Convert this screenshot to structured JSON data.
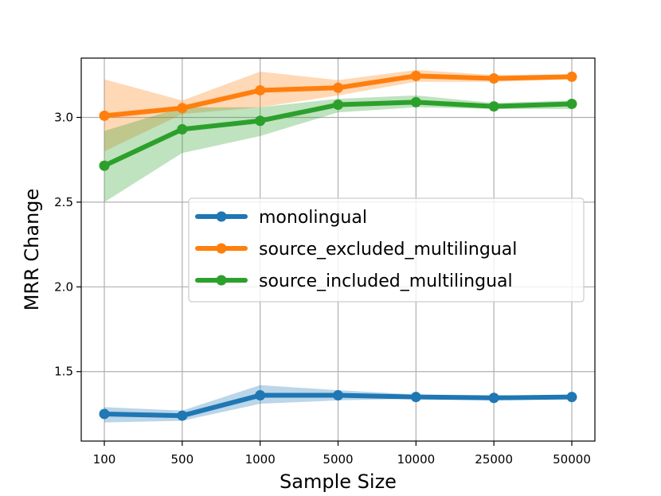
{
  "chart_data": {
    "type": "line",
    "xlabel": "Sample Size",
    "ylabel": "MRR Change",
    "categories": [
      "100",
      "500",
      "1000",
      "5000",
      "10000",
      "25000",
      "50000"
    ],
    "ylim": [
      1.09,
      3.35
    ],
    "yticks": [
      1.5,
      2.0,
      2.5,
      3.0
    ],
    "ytick_labels": [
      "1.5",
      "2.0",
      "2.5",
      "3.0"
    ],
    "grid": true,
    "legend_position": "center-right",
    "series": [
      {
        "name": "monolingual",
        "color": "#1f77b4",
        "values": [
          1.25,
          1.24,
          1.36,
          1.36,
          1.35,
          1.345,
          1.35
        ],
        "lower": [
          1.2,
          1.21,
          1.31,
          1.33,
          1.34,
          1.33,
          1.34
        ],
        "upper": [
          1.29,
          1.27,
          1.42,
          1.39,
          1.365,
          1.36,
          1.36
        ]
      },
      {
        "name": "source_excluded_multilingual",
        "color": "#ff7f0e",
        "values": [
          3.01,
          3.055,
          3.16,
          3.175,
          3.245,
          3.23,
          3.24
        ],
        "lower": [
          2.8,
          3.02,
          3.06,
          3.13,
          3.21,
          3.21,
          3.225
        ],
        "upper": [
          3.225,
          3.1,
          3.27,
          3.22,
          3.28,
          3.25,
          3.255
        ]
      },
      {
        "name": "source_included_multilingual",
        "color": "#2ca02c",
        "values": [
          2.715,
          2.93,
          2.98,
          3.075,
          3.09,
          3.065,
          3.08
        ],
        "lower": [
          2.5,
          2.79,
          2.89,
          3.03,
          3.06,
          3.05,
          3.05
        ],
        "upper": [
          2.92,
          3.06,
          3.06,
          3.11,
          3.13,
          3.085,
          3.1
        ]
      }
    ]
  }
}
